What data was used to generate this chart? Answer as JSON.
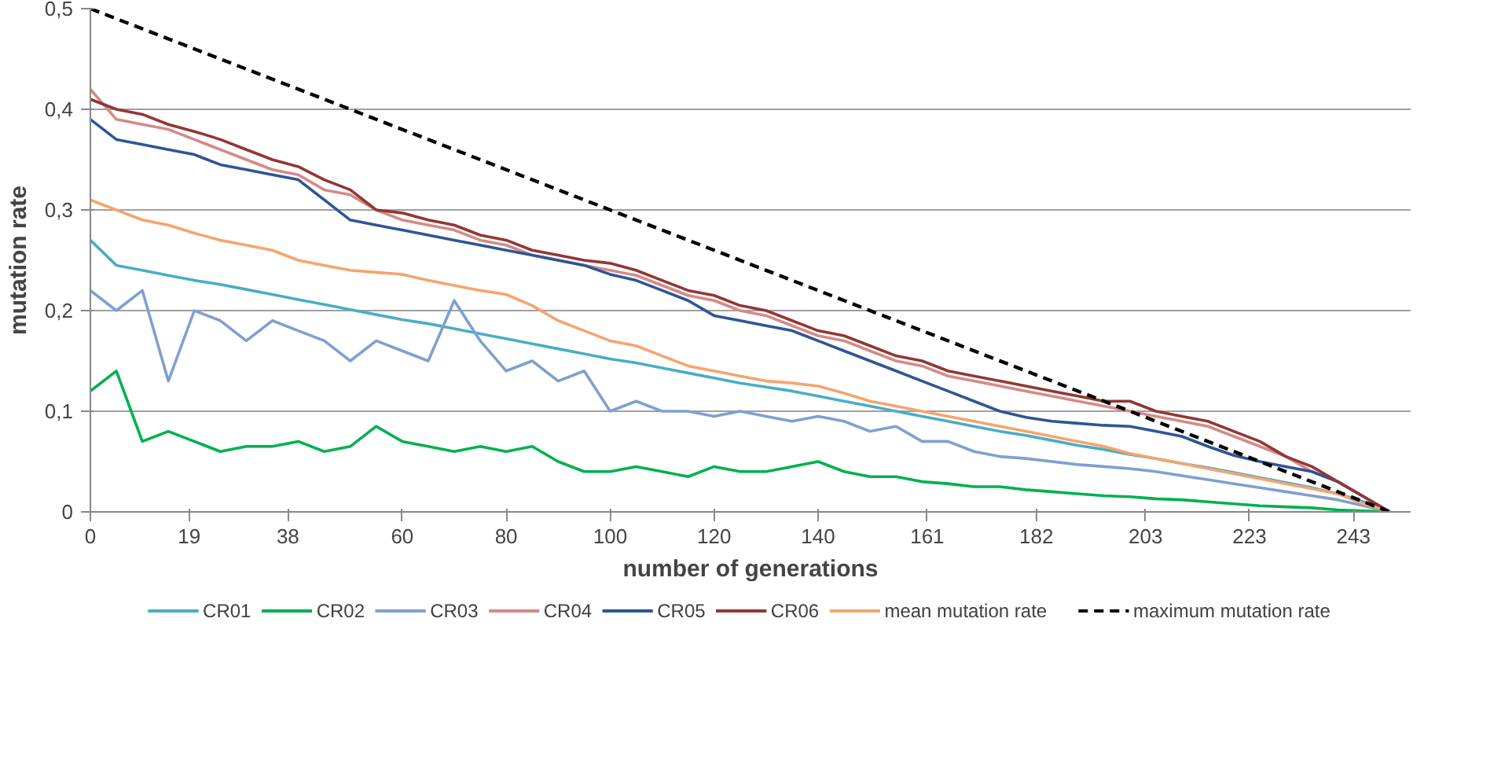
{
  "chart_data": {
    "type": "line",
    "xlabel": "number of generations",
    "ylabel": "mutation rate",
    "x": [
      0,
      5,
      10,
      15,
      20,
      25,
      30,
      35,
      40,
      45,
      50,
      55,
      60,
      65,
      70,
      75,
      80,
      85,
      90,
      95,
      100,
      105,
      110,
      115,
      120,
      125,
      130,
      135,
      140,
      145,
      150,
      155,
      160,
      165,
      170,
      175,
      180,
      185,
      190,
      195,
      200,
      205,
      210,
      215,
      220,
      225,
      230,
      235,
      240,
      245,
      250
    ],
    "xlim": [
      0,
      254
    ],
    "xticks": [
      0,
      19,
      38,
      60,
      80,
      100,
      120,
      140,
      161,
      182,
      203,
      223,
      243
    ],
    "ylim": [
      0,
      0.5
    ],
    "yticks": [
      0,
      {
        "value": 0.1,
        "label": "0,1"
      },
      {
        "value": 0.2,
        "label": "0,2"
      },
      {
        "value": 0.3,
        "label": "0,3"
      },
      {
        "value": 0.4,
        "label": "0,4"
      },
      {
        "value": 0.5,
        "label": "0,5"
      }
    ],
    "grid": "y",
    "legend": "bottom",
    "line_style": "solid",
    "series": [
      {
        "name": "CR01",
        "color": "#4bacc6",
        "values": [
          0.27,
          0.245,
          0.24,
          0.235,
          0.23,
          0.226,
          0.221,
          0.216,
          0.211,
          0.206,
          0.201,
          0.196,
          0.191,
          0.187,
          0.182,
          0.177,
          0.172,
          0.167,
          0.162,
          0.157,
          0.152,
          0.148,
          0.143,
          0.138,
          0.133,
          0.128,
          0.124,
          0.12,
          0.115,
          0.11,
          0.105,
          0.1,
          0.095,
          0.09,
          0.085,
          0.08,
          0.076,
          0.071,
          0.066,
          0.062,
          0.057,
          0.053,
          0.048,
          0.044,
          0.039,
          0.034,
          0.029,
          0.024,
          0.018,
          0.01,
          0
        ]
      },
      {
        "name": "CR02",
        "color": "#00b050",
        "values": [
          0.12,
          0.14,
          0.07,
          0.08,
          0.07,
          0.06,
          0.065,
          0.065,
          0.07,
          0.06,
          0.065,
          0.085,
          0.07,
          0.065,
          0.06,
          0.065,
          0.06,
          0.065,
          0.05,
          0.04,
          0.04,
          0.045,
          0.04,
          0.035,
          0.045,
          0.04,
          0.04,
          0.045,
          0.05,
          0.04,
          0.035,
          0.035,
          0.03,
          0.028,
          0.025,
          0.025,
          0.022,
          0.02,
          0.018,
          0.016,
          0.015,
          0.013,
          0.012,
          0.01,
          0.008,
          0.006,
          0.005,
          0.004,
          0.002,
          0.001,
          0
        ]
      },
      {
        "name": "CR03",
        "color": "#7f9fd0",
        "values": [
          0.22,
          0.2,
          0.22,
          0.13,
          0.2,
          0.19,
          0.17,
          0.19,
          0.18,
          0.17,
          0.15,
          0.17,
          0.16,
          0.15,
          0.21,
          0.17,
          0.14,
          0.15,
          0.13,
          0.14,
          0.1,
          0.11,
          0.1,
          0.1,
          0.095,
          0.1,
          0.095,
          0.09,
          0.095,
          0.09,
          0.08,
          0.085,
          0.07,
          0.07,
          0.06,
          0.055,
          0.053,
          0.05,
          0.047,
          0.045,
          0.043,
          0.04,
          0.036,
          0.032,
          0.028,
          0.024,
          0.02,
          0.016,
          0.012,
          0.006,
          0
        ]
      },
      {
        "name": "CR04",
        "color": "#d48a87",
        "values": [
          0.42,
          0.39,
          0.385,
          0.38,
          0.37,
          0.36,
          0.35,
          0.34,
          0.335,
          0.32,
          0.315,
          0.3,
          0.29,
          0.285,
          0.28,
          0.27,
          0.265,
          0.255,
          0.25,
          0.245,
          0.24,
          0.235,
          0.225,
          0.215,
          0.21,
          0.2,
          0.195,
          0.185,
          0.175,
          0.17,
          0.16,
          0.15,
          0.145,
          0.135,
          0.13,
          0.125,
          0.12,
          0.115,
          0.11,
          0.105,
          0.1,
          0.095,
          0.09,
          0.085,
          0.075,
          0.065,
          0.055,
          0.04,
          0.03,
          0.015,
          0
        ]
      },
      {
        "name": "CR05",
        "color": "#2e5596",
        "values": [
          0.39,
          0.37,
          0.365,
          0.36,
          0.355,
          0.345,
          0.34,
          0.335,
          0.33,
          0.31,
          0.29,
          0.285,
          0.28,
          0.275,
          0.27,
          0.265,
          0.26,
          0.255,
          0.25,
          0.245,
          0.236,
          0.23,
          0.22,
          0.21,
          0.195,
          0.19,
          0.185,
          0.18,
          0.17,
          0.16,
          0.15,
          0.14,
          0.13,
          0.12,
          0.11,
          0.1,
          0.094,
          0.09,
          0.088,
          0.086,
          0.085,
          0.08,
          0.075,
          0.065,
          0.056,
          0.05,
          0.045,
          0.04,
          0.03,
          0.015,
          0
        ]
      },
      {
        "name": "CR06",
        "color": "#943634",
        "values": [
          0.41,
          0.4,
          0.395,
          0.385,
          0.378,
          0.37,
          0.36,
          0.35,
          0.343,
          0.33,
          0.32,
          0.3,
          0.297,
          0.29,
          0.285,
          0.275,
          0.27,
          0.26,
          0.255,
          0.25,
          0.247,
          0.24,
          0.23,
          0.22,
          0.215,
          0.205,
          0.2,
          0.19,
          0.18,
          0.175,
          0.165,
          0.155,
          0.15,
          0.14,
          0.135,
          0.13,
          0.125,
          0.12,
          0.115,
          0.11,
          0.11,
          0.1,
          0.095,
          0.09,
          0.08,
          0.07,
          0.055,
          0.045,
          0.03,
          0.015,
          0
        ]
      },
      {
        "name": "mean mutation rate",
        "color": "#f5a46e",
        "values": [
          0.31,
          0.3,
          0.29,
          0.285,
          0.277,
          0.27,
          0.265,
          0.26,
          0.25,
          0.245,
          0.24,
          0.238,
          0.236,
          0.23,
          0.225,
          0.22,
          0.216,
          0.205,
          0.19,
          0.18,
          0.17,
          0.165,
          0.155,
          0.145,
          0.14,
          0.135,
          0.13,
          0.128,
          0.125,
          0.118,
          0.11,
          0.105,
          0.1,
          0.095,
          0.09,
          0.085,
          0.08,
          0.075,
          0.07,
          0.065,
          0.058,
          0.053,
          0.048,
          0.043,
          0.038,
          0.033,
          0.028,
          0.023,
          0.018,
          0.008,
          0
        ]
      },
      {
        "name": "maximum mutation rate",
        "color": "#000000",
        "line_style": "dashed",
        "x": [
          0,
          250
        ],
        "values": [
          0.5,
          0
        ]
      }
    ]
  }
}
